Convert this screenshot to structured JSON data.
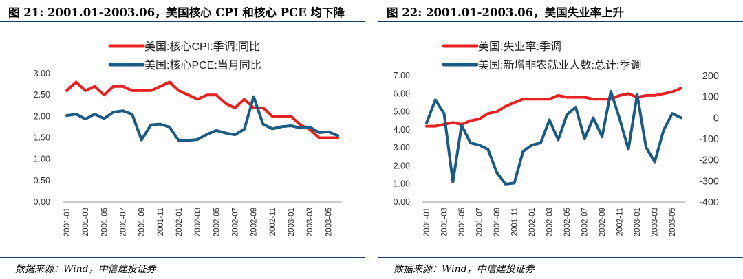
{
  "left_panel": {
    "title": "图 21: 2001.01-2003.06，美国核心 CPI 和核心 PCE 均下降",
    "source": "数据来源：Wind，中信建投证券"
  },
  "right_panel": {
    "title": "图 22: 2001.01-2003.06，美国失业率上升",
    "source": "数据来源：Wind，中信建投证券"
  },
  "chart_data": [
    {
      "type": "line",
      "x": [
        "2001-01",
        "2001-02",
        "2001-03",
        "2001-04",
        "2001-05",
        "2001-06",
        "2001-07",
        "2001-08",
        "2001-09",
        "2001-10",
        "2001-11",
        "2001-12",
        "2002-01",
        "2002-02",
        "2002-03",
        "2002-04",
        "2002-05",
        "2002-06",
        "2002-07",
        "2002-08",
        "2002-09",
        "2002-10",
        "2002-11",
        "2002-12",
        "2003-01",
        "2003-02",
        "2003-03",
        "2003-04",
        "2003-05",
        "2003-06"
      ],
      "xticks": [
        "2001-01",
        "2001-03",
        "2001-05",
        "2001-07",
        "2001-09",
        "2001-11",
        "2002-01",
        "2002-03",
        "2002-05",
        "2002-07",
        "2002-09",
        "2002-11",
        "2003-01",
        "2003-03",
        "2003-05"
      ],
      "ylim": [
        0,
        3
      ],
      "yticks": [
        "0.00",
        "0.50",
        "1.00",
        "1.50",
        "2.00",
        "2.50",
        "3.00"
      ],
      "legend_position": "top",
      "series": [
        {
          "name": "美国:核心CPI:季调:同比",
          "color": "#e8201f",
          "values": [
            2.6,
            2.8,
            2.6,
            2.7,
            2.5,
            2.7,
            2.7,
            2.6,
            2.6,
            2.6,
            2.7,
            2.8,
            2.6,
            2.5,
            2.4,
            2.5,
            2.5,
            2.3,
            2.2,
            2.4,
            2.2,
            2.2,
            2.0,
            2.0,
            2.0,
            1.8,
            1.7,
            1.5,
            1.5,
            1.5
          ]
        },
        {
          "name": "美国:核心PCE:当月同比",
          "color": "#1b5a82",
          "values": [
            2.02,
            2.05,
            1.94,
            2.05,
            1.95,
            2.1,
            2.13,
            2.05,
            1.45,
            1.8,
            1.82,
            1.75,
            1.43,
            1.44,
            1.46,
            1.58,
            1.67,
            1.61,
            1.57,
            1.7,
            2.46,
            1.82,
            1.71,
            1.76,
            1.78,
            1.73,
            1.75,
            1.62,
            1.64,
            1.55
          ]
        }
      ]
    },
    {
      "type": "line",
      "x": [
        "2001-01",
        "2001-02",
        "2001-03",
        "2001-04",
        "2001-05",
        "2001-06",
        "2001-07",
        "2001-08",
        "2001-09",
        "2001-10",
        "2001-11",
        "2001-12",
        "2002-01",
        "2002-02",
        "2002-03",
        "2002-04",
        "2002-05",
        "2002-06",
        "2002-07",
        "2002-08",
        "2002-09",
        "2002-10",
        "2002-11",
        "2002-12",
        "2003-01",
        "2003-02",
        "2003-03",
        "2003-04",
        "2003-05",
        "2003-06"
      ],
      "xticks": [
        "2001-01",
        "2001-03",
        "2001-05",
        "2001-07",
        "2001-09",
        "2001-11",
        "2002-01",
        "2002-03",
        "2002-05",
        "2002-07",
        "2002-09",
        "2002-11",
        "2003-01",
        "2003-03",
        "2003-05"
      ],
      "ylim": [
        0,
        7
      ],
      "yticks": [
        "0.00",
        "1.00",
        "2.00",
        "3.00",
        "4.00",
        "5.00",
        "6.00",
        "7.00"
      ],
      "y2lim": [
        -400,
        200
      ],
      "y2ticks": [
        "-400",
        "-300",
        "-200",
        "-100",
        "0",
        "100",
        "200"
      ],
      "legend_position": "top",
      "series": [
        {
          "name": "美国:失业率:季调",
          "color": "#e8201f",
          "axis": "left",
          "values": [
            4.2,
            4.2,
            4.3,
            4.4,
            4.3,
            4.5,
            4.6,
            4.9,
            5.0,
            5.3,
            5.5,
            5.7,
            5.7,
            5.7,
            5.7,
            5.9,
            5.8,
            5.8,
            5.8,
            5.7,
            5.7,
            5.7,
            5.9,
            6.0,
            5.8,
            5.9,
            5.9,
            6.0,
            6.1,
            6.3
          ]
        },
        {
          "name": "美国:新增非农就业人数:总计:季调",
          "color": "#1b5a82",
          "axis": "right",
          "values": [
            -25,
            85,
            20,
            -305,
            -35,
            -120,
            -130,
            -150,
            -260,
            -315,
            -310,
            -160,
            -130,
            -120,
            -10,
            -105,
            15,
            50,
            -100,
            0,
            -90,
            125,
            -5,
            -150,
            110,
            -140,
            -210,
            -60,
            20,
            0
          ]
        }
      ]
    }
  ]
}
